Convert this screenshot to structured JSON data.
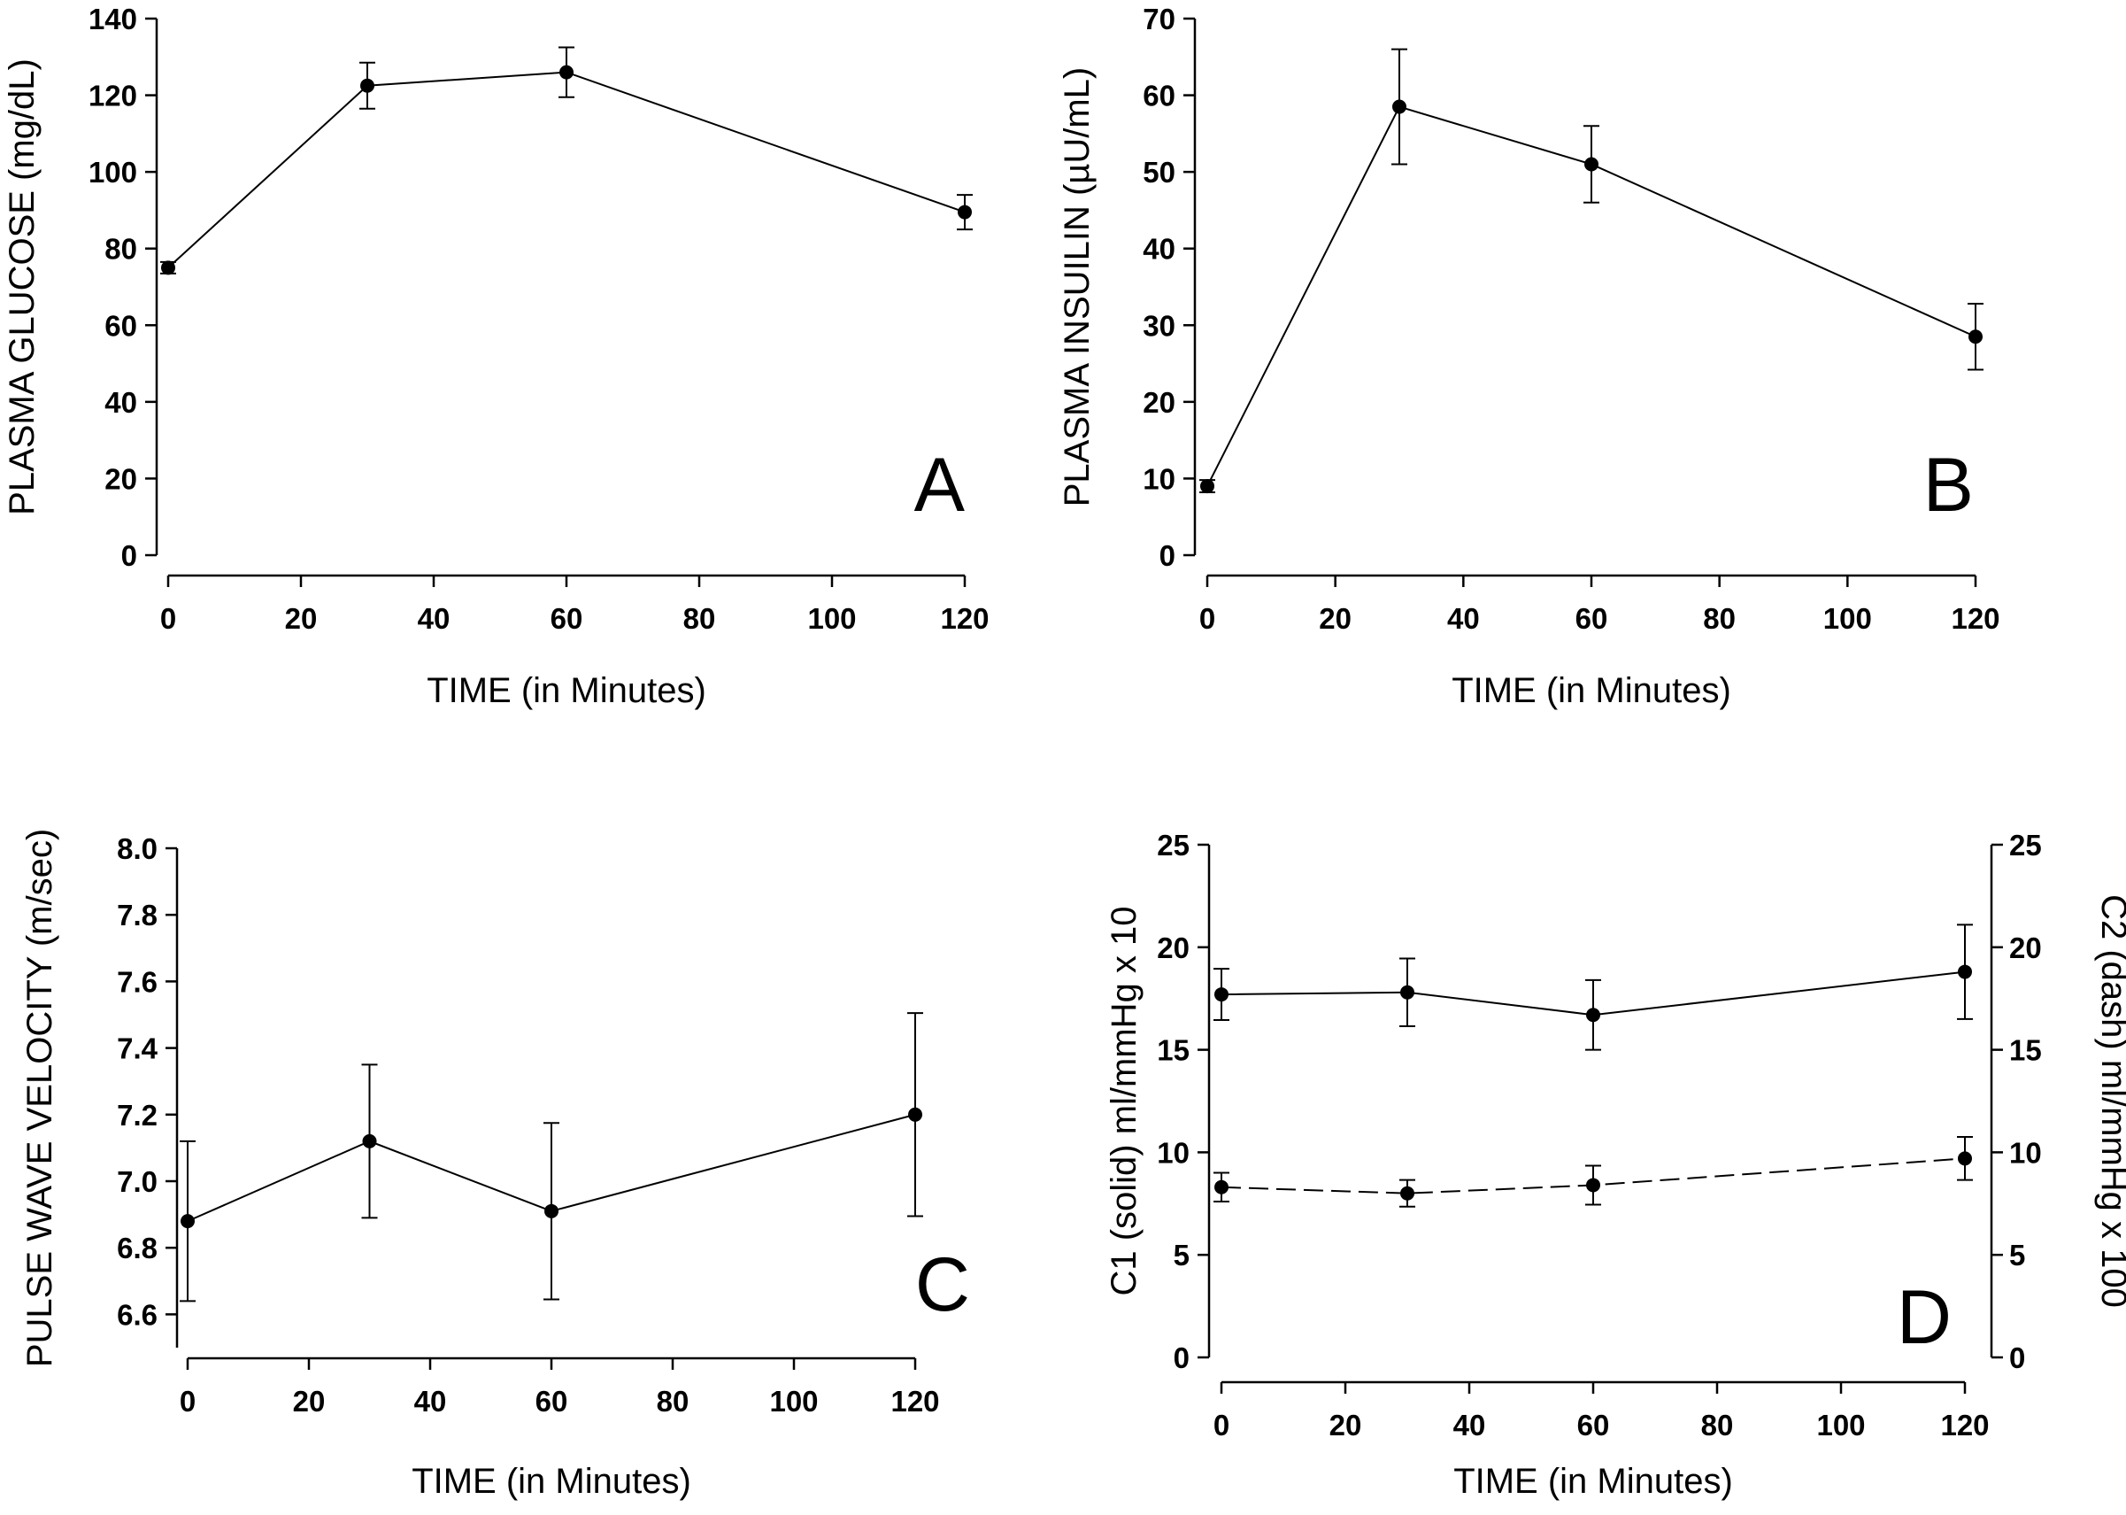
{
  "chart_data": [
    {
      "id": "A",
      "type": "line",
      "panel_label": "A",
      "xlabel": "TIME (in Minutes)",
      "ylabel": "PLASMA GLUCOSE (mg/dL)",
      "xlim": [
        0,
        120
      ],
      "ylim": [
        0,
        140
      ],
      "xticks": [
        0,
        20,
        40,
        60,
        80,
        100,
        120
      ],
      "yticks": [
        0,
        20,
        40,
        60,
        80,
        100,
        120,
        140
      ],
      "grid": false,
      "series": [
        {
          "x": [
            0,
            30,
            60,
            120
          ],
          "y": [
            75,
            122.5,
            126,
            89.5
          ],
          "err": [
            1.5,
            6,
            6.5,
            4.5
          ],
          "dashed": false
        }
      ]
    },
    {
      "id": "B",
      "type": "line",
      "panel_label": "B",
      "xlabel": "TIME (in Minutes)",
      "ylabel": "PLASMA INSUILIN (µU/mL)",
      "xlim": [
        0,
        120
      ],
      "ylim": [
        0,
        70
      ],
      "xticks": [
        0,
        20,
        40,
        60,
        80,
        100,
        120
      ],
      "yticks": [
        0,
        10,
        20,
        30,
        40,
        50,
        60,
        70
      ],
      "grid": false,
      "series": [
        {
          "x": [
            0,
            30,
            60,
            120
          ],
          "y": [
            9,
            58.5,
            51,
            28.5
          ],
          "err": [
            0.8,
            7.5,
            5,
            4.3
          ],
          "dashed": false
        }
      ]
    },
    {
      "id": "C",
      "type": "line",
      "panel_label": "C",
      "xlabel": "TIME (in Minutes)",
      "ylabel": "PULSE WAVE VELOCITY (m/sec)",
      "xlim": [
        0,
        120
      ],
      "ylim": [
        6.5,
        8.0
      ],
      "xticks": [
        0,
        20,
        40,
        60,
        80,
        100,
        120
      ],
      "yticks": [
        6.6,
        6.8,
        7.0,
        7.2,
        7.4,
        7.6,
        7.8,
        8.0
      ],
      "ytick_format": 1,
      "grid": false,
      "series": [
        {
          "x": [
            0,
            30,
            60,
            120
          ],
          "y": [
            6.88,
            7.12,
            6.91,
            7.2
          ],
          "err": [
            0.24,
            0.23,
            0.265,
            0.305
          ],
          "dashed": false
        }
      ]
    },
    {
      "id": "D",
      "type": "line",
      "panel_label": "D",
      "xlabel": "TIME (in Minutes)",
      "ylabel": "C1 (solid) ml/mmHg x 10",
      "y2label": "C2 (dash) ml/mmHg x 100",
      "xlim": [
        0,
        120
      ],
      "ylim": [
        0,
        25
      ],
      "y2lim": [
        0,
        25
      ],
      "xticks": [
        0,
        20,
        40,
        60,
        80,
        100,
        120
      ],
      "yticks": [
        0,
        5,
        10,
        15,
        20,
        25
      ],
      "y2ticks": [
        0,
        5,
        10,
        15,
        20,
        25
      ],
      "grid": false,
      "series": [
        {
          "x": [
            0,
            30,
            60,
            120
          ],
          "y": [
            17.7,
            17.8,
            16.7,
            18.8
          ],
          "err": [
            1.25,
            1.65,
            1.7,
            2.3
          ],
          "dashed": false
        },
        {
          "x": [
            0,
            30,
            60,
            120
          ],
          "y": [
            8.3,
            8.0,
            8.4,
            9.7
          ],
          "err": [
            0.7,
            0.65,
            0.95,
            1.05
          ],
          "dashed": true
        }
      ]
    }
  ]
}
